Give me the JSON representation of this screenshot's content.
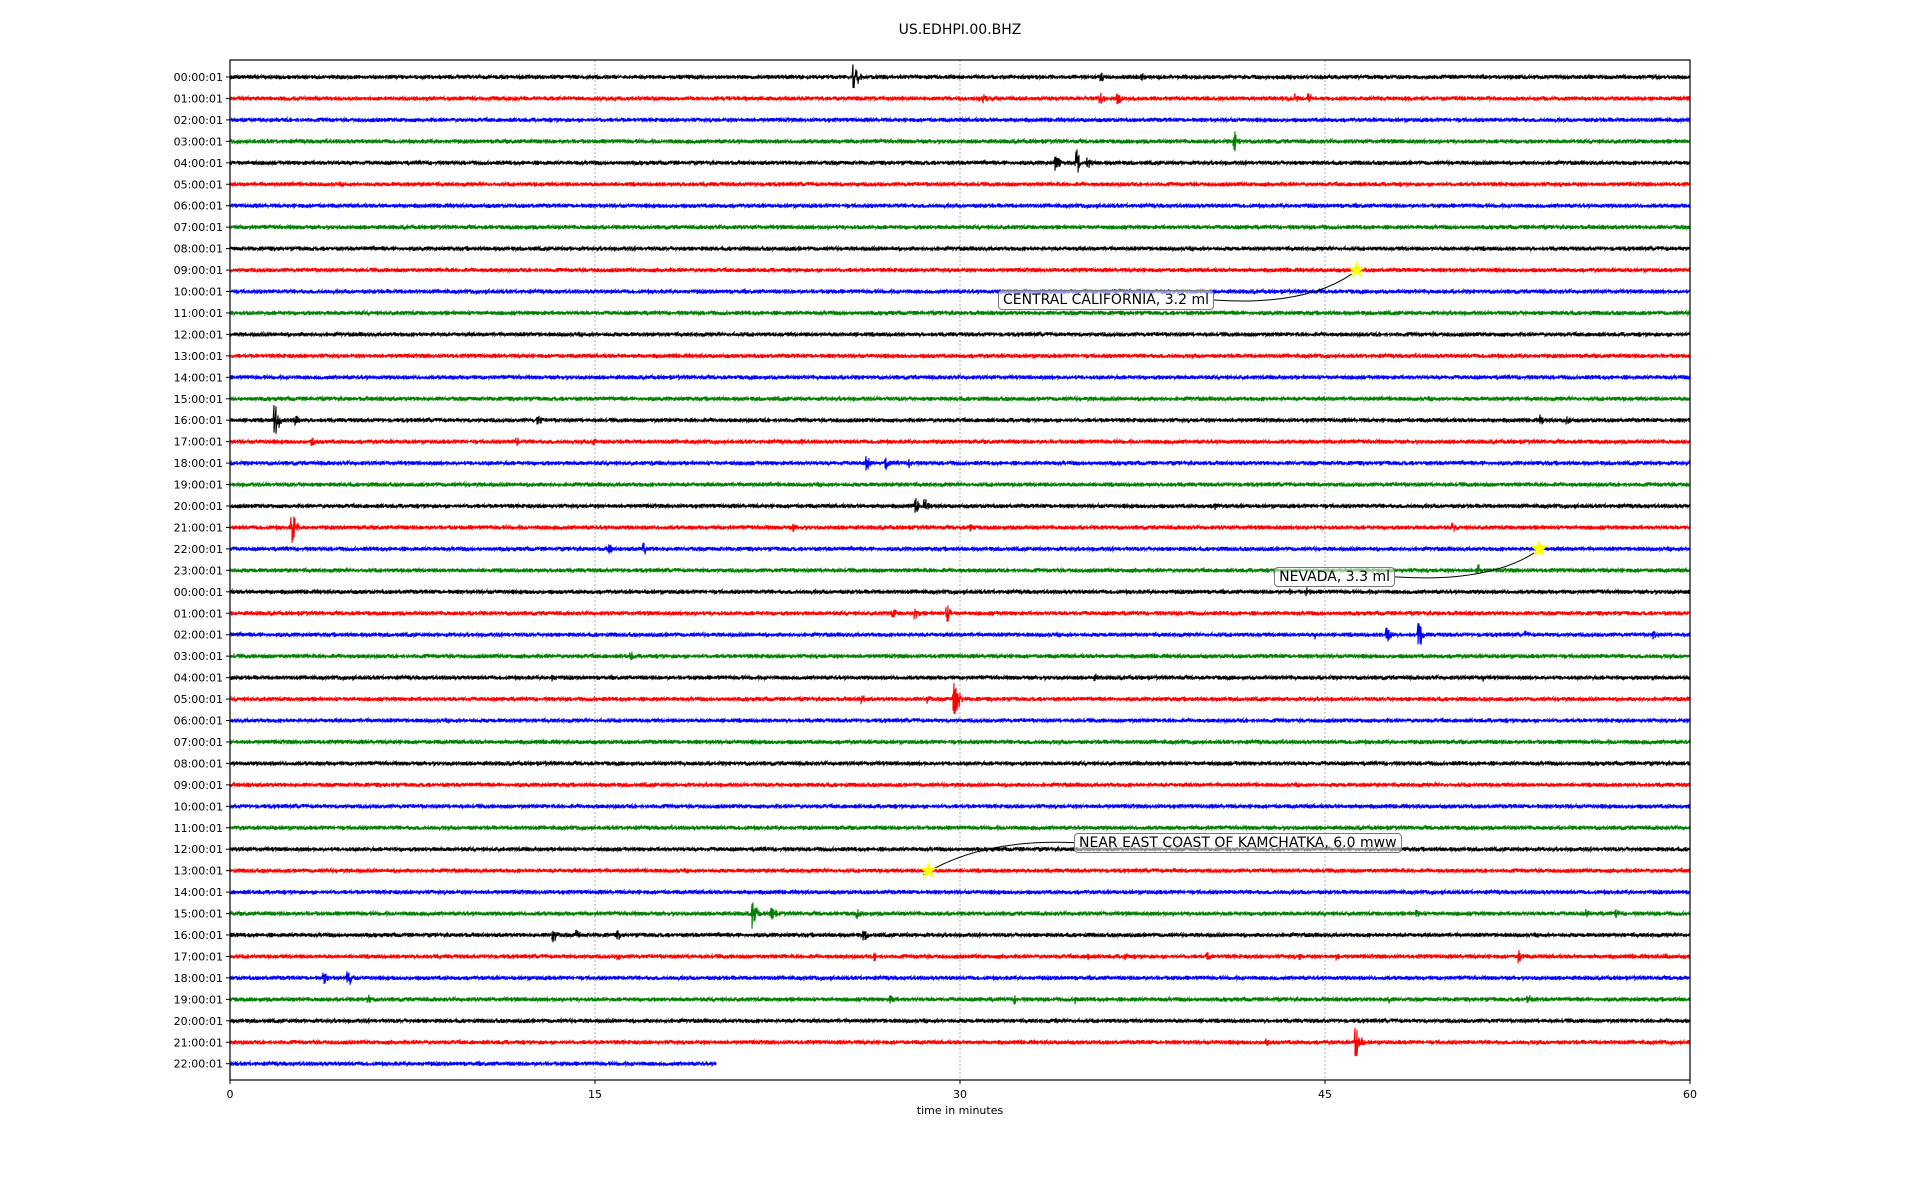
{
  "chart_data": {
    "type": "line",
    "title": "US.EDHPI.00.BHZ",
    "xlabel": "time in minutes",
    "ylabel": "",
    "xlim": [
      0,
      60
    ],
    "xticks": [
      "0",
      "15",
      "30",
      "45",
      "60"
    ],
    "xtick_values": [
      0,
      15,
      30,
      45,
      60
    ],
    "grid": "vertical dotted at 15, 30, 45",
    "row_labels": [
      "00:00:01",
      "01:00:01",
      "02:00:01",
      "03:00:01",
      "04:00:01",
      "05:00:01",
      "06:00:01",
      "07:00:01",
      "08:00:01",
      "09:00:01",
      "10:00:01",
      "11:00:01",
      "12:00:01",
      "13:00:01",
      "14:00:01",
      "15:00:01",
      "16:00:01",
      "17:00:01",
      "18:00:01",
      "19:00:01",
      "20:00:01",
      "21:00:01",
      "22:00:01",
      "23:00:01",
      "00:00:01",
      "01:00:01",
      "02:00:01",
      "03:00:01",
      "04:00:01",
      "05:00:01",
      "06:00:01",
      "07:00:01",
      "08:00:01",
      "09:00:01",
      "10:00:01",
      "11:00:01",
      "12:00:01",
      "13:00:01",
      "14:00:01",
      "15:00:01",
      "16:00:01",
      "17:00:01",
      "18:00:01",
      "19:00:01",
      "20:00:01",
      "21:00:01",
      "22:00:01"
    ],
    "row_colors": [
      "#000000",
      "#ff0000",
      "#0000ff",
      "#008000"
    ],
    "last_row_end_minute": 20,
    "events": [
      [
        0,
        25.7,
        14
      ],
      [
        0,
        35.8,
        6
      ],
      [
        0,
        37.5,
        5
      ],
      [
        1,
        31,
        5
      ],
      [
        1,
        35.8,
        6
      ],
      [
        1,
        36.5,
        8
      ],
      [
        1,
        43.8,
        6
      ],
      [
        1,
        44.4,
        6
      ],
      [
        3,
        41.3,
        10
      ],
      [
        4,
        34,
        8
      ],
      [
        4,
        34.8,
        14
      ],
      [
        4,
        35.3,
        6
      ],
      [
        16,
        1.9,
        16
      ],
      [
        16,
        2.7,
        8
      ],
      [
        16,
        12.7,
        6
      ],
      [
        16,
        53.9,
        6
      ],
      [
        16,
        55,
        5
      ],
      [
        17,
        3.4,
        5
      ],
      [
        17,
        11.8,
        5
      ],
      [
        17,
        15,
        5
      ],
      [
        17,
        23.5,
        4
      ],
      [
        18,
        17.3,
        4
      ],
      [
        18,
        26.2,
        8
      ],
      [
        18,
        27,
        7
      ],
      [
        18,
        28,
        5
      ],
      [
        20,
        28.2,
        8
      ],
      [
        20,
        28.6,
        7
      ],
      [
        20,
        40.5,
        5
      ],
      [
        21,
        2.6,
        16
      ],
      [
        21,
        23.2,
        5
      ],
      [
        21,
        30.5,
        5
      ],
      [
        21,
        32.4,
        5
      ],
      [
        21,
        50.3,
        5
      ],
      [
        22,
        15.6,
        6
      ],
      [
        22,
        17,
        8
      ],
      [
        23,
        51.3,
        8
      ],
      [
        24,
        43.5,
        5
      ],
      [
        24,
        44.3,
        5
      ],
      [
        25,
        27.3,
        5
      ],
      [
        25,
        28.2,
        7
      ],
      [
        25,
        29.5,
        9
      ],
      [
        26,
        44.6,
        5
      ],
      [
        26,
        47.6,
        9
      ],
      [
        26,
        48.9,
        14
      ],
      [
        26,
        53.3,
        4
      ],
      [
        26,
        58.5,
        5
      ],
      [
        27,
        16.5,
        5
      ],
      [
        28,
        13.3,
        4
      ],
      [
        28,
        35.6,
        4
      ],
      [
        28,
        51.5,
        4
      ],
      [
        28,
        58.5,
        4
      ],
      [
        29,
        26,
        6
      ],
      [
        29,
        28.7,
        5
      ],
      [
        29,
        29.8,
        22
      ],
      [
        37,
        38.8,
        3
      ],
      [
        39,
        21.5,
        16
      ],
      [
        39,
        22.3,
        9
      ],
      [
        39,
        25.8,
        6
      ],
      [
        39,
        48.8,
        5
      ],
      [
        39,
        55.8,
        5
      ],
      [
        39,
        57,
        5
      ],
      [
        40,
        13.3,
        9
      ],
      [
        40,
        14.3,
        6
      ],
      [
        40,
        16,
        5
      ],
      [
        40,
        26.1,
        6
      ],
      [
        41,
        16,
        4
      ],
      [
        41,
        26.5,
        5
      ],
      [
        41,
        35.3,
        5
      ],
      [
        41,
        36.8,
        5
      ],
      [
        41,
        40.2,
        5
      ],
      [
        41,
        44,
        4
      ],
      [
        41,
        45.5,
        5
      ],
      [
        41,
        53,
        7
      ],
      [
        41,
        59,
        4
      ],
      [
        42,
        3.9,
        6
      ],
      [
        42,
        4.9,
        11
      ],
      [
        43,
        5.7,
        6
      ],
      [
        43,
        27.2,
        5
      ],
      [
        43,
        32.3,
        5
      ],
      [
        43,
        34.8,
        5
      ],
      [
        43,
        47.6,
        6
      ],
      [
        43,
        53.4,
        5
      ],
      [
        44,
        34,
        4
      ],
      [
        45,
        42.6,
        5
      ],
      [
        45,
        46.3,
        18
      ]
    ],
    "annotations": [
      {
        "label": "CENTRAL CALIFORNIA, 3.2 ml",
        "row": 9,
        "minute": 46.3
      },
      {
        "label": "NEVADA, 3.3 ml",
        "row": 22,
        "minute": 53.8
      },
      {
        "label": "NEAR EAST COAST OF KAMCHATKA, 6.0 mww",
        "row": 37,
        "minute": 28.7
      }
    ],
    "marker_color": "#ffff00"
  }
}
